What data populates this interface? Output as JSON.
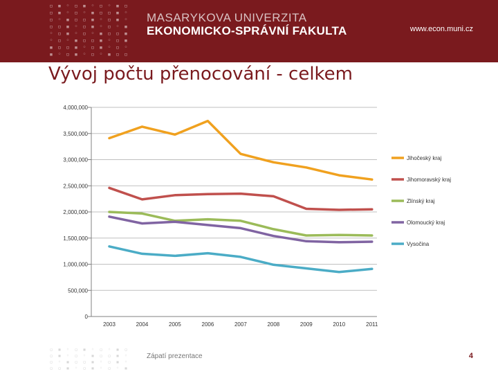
{
  "header": {
    "university": "MASARYKOVA UNIVERZITA",
    "faculty": "EKONOMICKO-SPRÁVNÍ FAKULTA",
    "website": "www.econ.muni.cz"
  },
  "slide": {
    "title": "Vývoj počtu přenocování - celkem",
    "footer": "Zápatí prezentace",
    "page_number": "4"
  },
  "chart_data": {
    "type": "line",
    "title": "",
    "xlabel": "",
    "ylabel": "",
    "ylim": [
      0,
      4000000
    ],
    "y_ticks": [
      "0",
      "500,000",
      "1,000,000",
      "1,500,000",
      "2,000,000",
      "2,500,000",
      "3,000,000",
      "3,500,000",
      "4,000,000"
    ],
    "y_tick_values": [
      0,
      500000,
      1000000,
      1500000,
      2000000,
      2500000,
      3000000,
      3500000,
      4000000
    ],
    "categories": [
      "2003",
      "2004",
      "2005",
      "2006",
      "2007",
      "2008",
      "2009",
      "2010",
      "2011"
    ],
    "grid": true,
    "legend_position": "right",
    "series": [
      {
        "name": "Jihočeský kraj",
        "color": "#f0a11f",
        "values": [
          3410000,
          3630000,
          3480000,
          3740000,
          3110000,
          2950000,
          2850000,
          2700000,
          2620000
        ]
      },
      {
        "name": "Jihomoravský kraj",
        "color": "#c0504d",
        "values": [
          2460000,
          2240000,
          2320000,
          2340000,
          2350000,
          2300000,
          2060000,
          2040000,
          2050000
        ]
      },
      {
        "name": "Zlínský kraj",
        "color": "#9bbb59",
        "values": [
          2000000,
          1970000,
          1830000,
          1860000,
          1830000,
          1670000,
          1550000,
          1560000,
          1550000
        ]
      },
      {
        "name": "Olomoucký kraj",
        "color": "#8064a2",
        "values": [
          1910000,
          1780000,
          1810000,
          1750000,
          1690000,
          1540000,
          1440000,
          1420000,
          1430000
        ]
      },
      {
        "name": "Vysočina",
        "color": "#4bacc6",
        "values": [
          1340000,
          1200000,
          1160000,
          1210000,
          1140000,
          990000,
          920000,
          850000,
          910000
        ]
      }
    ]
  }
}
